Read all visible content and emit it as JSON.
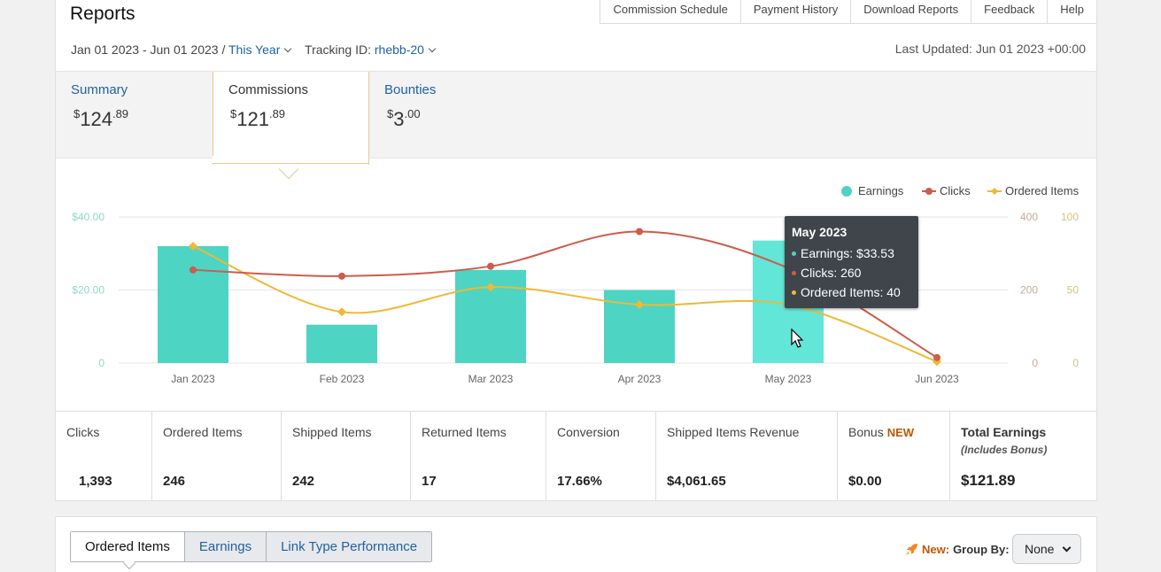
{
  "header": {
    "title": "Reports",
    "top_links": [
      "Commission Schedule",
      "Payment History",
      "Download Reports",
      "Feedback",
      "Help"
    ],
    "date_range": "Jan 01 2023 - Jun 01 2023 /",
    "period": "This Year",
    "tracking_label": "Tracking ID:",
    "tracking_id": "rhebb-20",
    "last_updated": "Last Updated: Jun 01 2023 +00:00"
  },
  "tabs": [
    {
      "label": "Summary",
      "amount_main": "124",
      "amount_cents": ".89",
      "currency": "$"
    },
    {
      "label": "Commissions",
      "amount_main": "121",
      "amount_cents": ".89",
      "currency": "$"
    },
    {
      "label": "Bounties",
      "amount_main": "3",
      "amount_cents": ".00",
      "currency": "$"
    }
  ],
  "legend": {
    "earnings": "Earnings",
    "clicks": "Clicks",
    "ordered": "Ordered Items"
  },
  "tooltip": {
    "title": "May 2023",
    "earnings": "Earnings: $33.53",
    "clicks": "Clicks: 260",
    "ordered": "Ordered Items: 40"
  },
  "chart_data": {
    "type": "bar",
    "categories": [
      "Jan 2023",
      "Feb 2023",
      "Mar 2023",
      "Apr 2023",
      "May 2023",
      "Jun 2023"
    ],
    "series": [
      {
        "name": "Earnings",
        "type": "bar",
        "axis": "left",
        "values": [
          32.0,
          10.5,
          25.5,
          20.0,
          33.53,
          0
        ]
      },
      {
        "name": "Clicks",
        "type": "line",
        "axis": "right1",
        "values": [
          255,
          238,
          265,
          360,
          260,
          15
        ]
      },
      {
        "name": "Ordered Items",
        "type": "line",
        "axis": "right2",
        "values": [
          80,
          35,
          52,
          40,
          40,
          1
        ]
      }
    ],
    "y_left": {
      "ticks": [
        "$40.00",
        "$20.00",
        "0"
      ],
      "max": 40
    },
    "y_right1": {
      "ticks": [
        "400",
        "200",
        "0"
      ],
      "max": 400
    },
    "y_right2": {
      "ticks": [
        "100",
        "50",
        "0"
      ],
      "max": 100
    },
    "colors": {
      "earnings": "#4dd4c3",
      "earnings_hover": "#62e6d8",
      "clicks": "#cd5c4a",
      "ordered": "#efb934",
      "grid": "#e6e6e6"
    },
    "highlighted": "May 2023",
    "grid": true,
    "legend_position": "top-right"
  },
  "stats": [
    {
      "label": "Clicks",
      "value": "1,393"
    },
    {
      "label": "Ordered Items",
      "value": "246"
    },
    {
      "label": "Shipped Items",
      "value": "242"
    },
    {
      "label": "Returned Items",
      "value": "17"
    },
    {
      "label": "Conversion",
      "value": "17.66%"
    },
    {
      "label": "Shipped Items Revenue",
      "value": "$4,061.65"
    },
    {
      "label": "Bonus",
      "badge": "NEW",
      "value": "$0.00"
    },
    {
      "label": "Total Earnings",
      "sub": "(Includes Bonus)",
      "value": "$121.89"
    }
  ],
  "bottom_tabs": [
    "Ordered Items",
    "Earnings",
    "Link Type Performance"
  ],
  "group_by": {
    "new_label": "New:",
    "label": "Group By:",
    "value": "None"
  }
}
